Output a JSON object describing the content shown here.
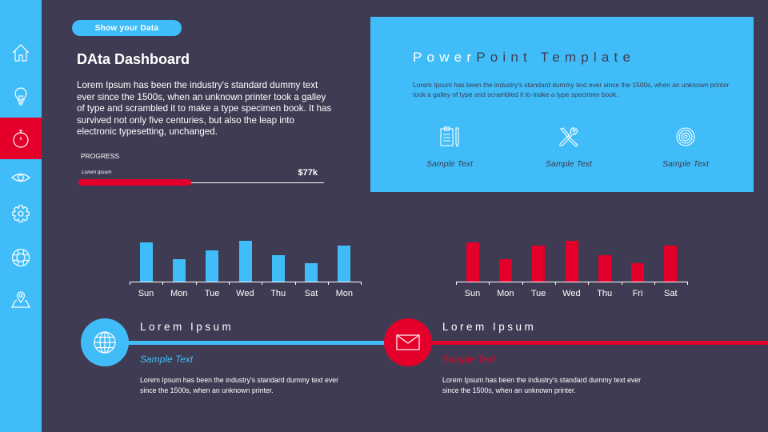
{
  "sidebar": {
    "items": [
      {
        "icon": "home-icon",
        "active": false
      },
      {
        "icon": "lightbulb-icon",
        "active": false
      },
      {
        "icon": "stopwatch-icon",
        "active": true
      },
      {
        "icon": "eye-icon",
        "active": false
      },
      {
        "icon": "gear-icon",
        "active": false
      },
      {
        "icon": "lifebuoy-icon",
        "active": false
      },
      {
        "icon": "map-pin-icon",
        "active": false
      }
    ]
  },
  "header": {
    "pill_label": "Show your  Data",
    "title": "DAta Dashboard",
    "paragraph": "Lorem Ipsum has been the industry's standard dummy text ever since the 1500s, when an unknown printer took a galley of type and scrambled it to make a type specimen book. It has survived not only five centuries, but also the leap into electronic typesetting,  unchanged."
  },
  "progress": {
    "label": "PROGRESS",
    "sublabel": "Lorem ipsum",
    "value": "$77k",
    "percent": 46,
    "color": "#e4002b"
  },
  "card": {
    "title_white": "Power",
    "title_dark": "Point  Template",
    "text": "Lorem Ipsum has been the industry's standard dummy text ever since the 1500s, when an unknown printer took a galley of type and scrambled it to make a type specimen  book.",
    "features": [
      {
        "icon": "clipboard-pencil-icon",
        "label": "Sample Text"
      },
      {
        "icon": "tools-icon",
        "label": "Sample Text"
      },
      {
        "icon": "target-icon",
        "label": "Sample Text"
      }
    ]
  },
  "chart_data": [
    {
      "type": "bar",
      "title": "",
      "xlabel": "",
      "ylabel": "",
      "categories": [
        "Sun",
        "Mon",
        "Tue",
        "Wed",
        "Thu",
        "Sat",
        "Mon"
      ],
      "values": [
        50,
        29,
        40,
        52,
        34,
        23,
        46
      ],
      "ylim": [
        0,
        55
      ],
      "color": "#40bdf8",
      "grid": false
    },
    {
      "type": "bar",
      "title": "",
      "xlabel": "",
      "ylabel": "",
      "categories": [
        "Sun",
        "Mon",
        "Tue",
        "Wed",
        "Thu",
        "Fri",
        "Sat"
      ],
      "values": [
        50,
        29,
        46,
        52,
        34,
        23,
        46
      ],
      "ylim": [
        0,
        55
      ],
      "color": "#e4002b",
      "grid": false
    }
  ],
  "timeline": [
    {
      "icon": "globe-icon",
      "heading": "Lorem Ipsum",
      "subheading": "Sample Text",
      "text": "Lorem Ipsum has been the industry's standard dummy text ever since the 1500s, when an unknown printer.",
      "color": "#40bdf8"
    },
    {
      "icon": "envelope-icon",
      "heading": "Lorem Ipsum",
      "subheading": "Sample Text",
      "text": "Lorem Ipsum has been the industry's standard dummy text ever since the 1500s, when an unknown printer.",
      "color": "#e4002b"
    }
  ]
}
